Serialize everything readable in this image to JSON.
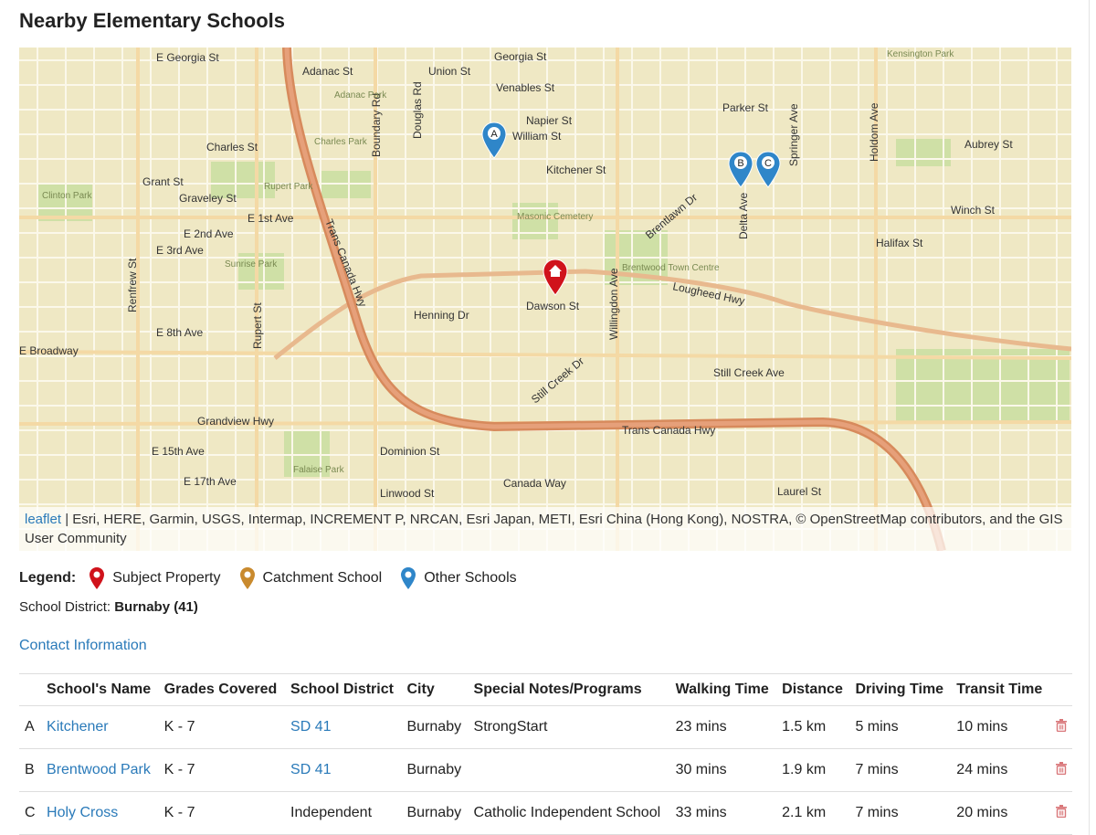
{
  "title": "Nearby Elementary Schools",
  "map": {
    "attribution_link": "leaflet",
    "attribution_text": " | Esri, HERE, Garmin, USGS, Intermap, INCREMENT P, NRCAN, Esri Japan, METI, Esri China (Hong Kong), NOSTRA, © OpenStreetMap contributors, and the GIS User Community",
    "labels": [
      "E Georgia St",
      "Adanac St",
      "Union St",
      "Georgia St",
      "Venables St",
      "Napier St",
      "William St",
      "Charles St",
      "Grant St",
      "Graveley St",
      "E 1st Ave",
      "E 2nd Ave",
      "E 3rd Ave",
      "Kitchener St",
      "Brentlawn Dr",
      "Lougheed Hwy",
      "Dawson St",
      "Henning Dr",
      "E 8th Ave",
      "E Broadway",
      "Still Creek Ave",
      "Grandview Hwy",
      "Trans Canada Hwy",
      "E 15th Ave",
      "E 17th Ave",
      "Dominion St",
      "Canada Way",
      "Laurel St",
      "Linwood St",
      "Halifax St",
      "Winch St",
      "Aubrey St",
      "Parker St",
      "Trans Canada Hwy",
      "Willingdon Ave",
      "Boundary Rd",
      "Rupert St",
      "Renfrew St",
      "Brentwood Town Centre",
      "Masonic Cemetery",
      "Sunrise Park",
      "Clinton Park",
      "Rupert Park",
      "Charles Park",
      "Adanac Park",
      "Falaise Park",
      "Kensington Park",
      "Still Creek Dr",
      "Delta Ave",
      "Springer Ave",
      "Holdom Ave",
      "Douglas Rd"
    ],
    "markers": [
      {
        "letter": "A",
        "type": "other"
      },
      {
        "letter": "B",
        "type": "other"
      },
      {
        "letter": "C",
        "type": "other"
      },
      {
        "letter": "",
        "type": "subject"
      }
    ]
  },
  "legend": {
    "label": "Legend:",
    "items": [
      {
        "label": "Subject Property",
        "color": "#d0121b"
      },
      {
        "label": "Catchment School",
        "color": "#c98a2e"
      },
      {
        "label": "Other Schools",
        "color": "#2f86c9"
      }
    ]
  },
  "district": {
    "label": "School District:",
    "value": "Burnaby (41)"
  },
  "contact_link": "Contact Information",
  "table": {
    "headers": [
      "",
      "School's Name",
      "Grades Covered",
      "School District",
      "City",
      "Special Notes/Programs",
      "Walking Time",
      "Distance",
      "Driving Time",
      "Transit Time",
      ""
    ],
    "rows": [
      {
        "letter": "A",
        "name": "Kitchener",
        "grades": "K - 7",
        "district": "SD 41",
        "district_link": true,
        "city": "Burnaby",
        "notes": "StrongStart",
        "walk": "23 mins",
        "distance": "1.5 km",
        "drive": "5 mins",
        "transit": "10 mins"
      },
      {
        "letter": "B",
        "name": "Brentwood Park",
        "grades": "K - 7",
        "district": "SD 41",
        "district_link": true,
        "city": "Burnaby",
        "notes": "",
        "walk": "30 mins",
        "distance": "1.9 km",
        "drive": "7 mins",
        "transit": "24 mins"
      },
      {
        "letter": "C",
        "name": "Holy Cross",
        "grades": "K - 7",
        "district": "Independent",
        "district_link": false,
        "city": "Burnaby",
        "notes": "Catholic Independent School",
        "walk": "33 mins",
        "distance": "2.1 km",
        "drive": "7 mins",
        "transit": "20 mins"
      }
    ]
  }
}
